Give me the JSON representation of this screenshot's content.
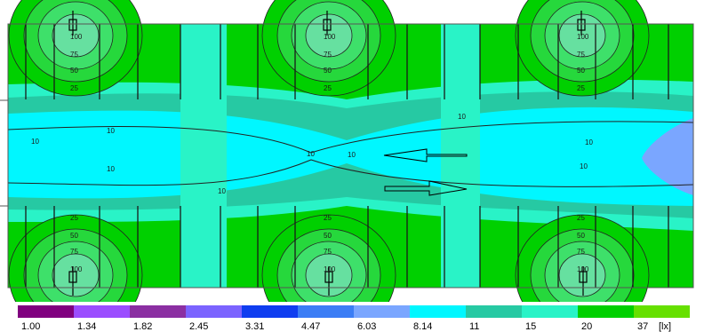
{
  "chart_data": {
    "type": "heatmap",
    "unit": "[lx]",
    "legend": {
      "labels": [
        "1.00",
        "1.34",
        "1.82",
        "2.45",
        "3.31",
        "4.47",
        "6.03",
        "8.14",
        "11",
        "15",
        "20",
        "37"
      ],
      "unit_label": "[lx]",
      "colors": [
        "#80007f",
        "#9b4dff",
        "#8b2fa2",
        "#7b63ff",
        "#0f3df0",
        "#3b7df5",
        "#7aa6ff",
        "#00f7ff",
        "#26c9a3",
        "#29f3c7",
        "#00d000",
        "#66e000"
      ]
    },
    "isolines": {
      "luminaire_top": [
        "100",
        "75",
        "50",
        "25"
      ],
      "luminaire_bottom": [
        "25",
        "50",
        "75",
        "100"
      ],
      "corridor": [
        "10",
        "10",
        "10",
        "10",
        "10",
        "10",
        "10",
        "10",
        "10"
      ]
    },
    "luminaire_count": 6,
    "arrows": [
      "left",
      "right"
    ]
  }
}
